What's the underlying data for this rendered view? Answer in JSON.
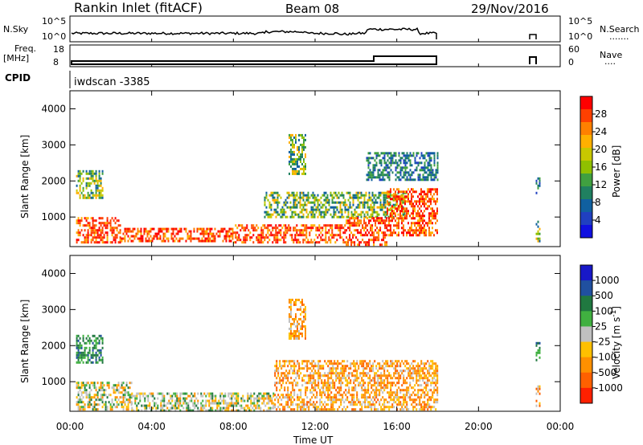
{
  "header": {
    "title": "Rankin Inlet (fitACF)",
    "beam": "Beam 08",
    "date": "29/Nov/2016"
  },
  "noise_panel": {
    "left_label": "N.Sky",
    "right_label": "N.Search",
    "right_dots": ".......",
    "y_tick_top": "10^5",
    "y_tick_bottom": "10^0"
  },
  "freq_panel": {
    "label_line1": "Freq.",
    "label_line2": "[MHz]",
    "left_ticks": [
      "18",
      "8"
    ],
    "right_label": "Nave",
    "right_dots": "....",
    "right_ticks": [
      "60",
      "0"
    ]
  },
  "cpid": {
    "label": "CPID",
    "value": "iwdscan -3385"
  },
  "axes": {
    "ylabel": "Slant Range [km]",
    "yticks": [
      "1000",
      "2000",
      "3000",
      "4000"
    ],
    "xticks": [
      "00:00",
      "04:00",
      "08:00",
      "12:00",
      "16:00",
      "20:00",
      "00:00"
    ],
    "xlabel": "Time UT"
  },
  "power_colorbar": {
    "label": "Power [dB]",
    "ticks": [
      "28",
      "24",
      "20",
      "16",
      "12",
      "8",
      "4"
    ],
    "colors": [
      "#ff0000",
      "#ff4000",
      "#ff8000",
      "#ffb000",
      "#c8c800",
      "#90c000",
      "#40a040",
      "#208060",
      "#1060a0",
      "#2040c0",
      "#1010e0"
    ]
  },
  "velocity_colorbar": {
    "label": "Velocity [m s",
    "label_sup": "-1",
    "label_end": "]",
    "ticks": [
      "1000",
      "500",
      "100",
      "25",
      "-25",
      "-100",
      "-500",
      "-1000"
    ],
    "colors": [
      "#1818c8",
      "#2050a0",
      "#207840",
      "#40b040",
      "#c0c0c0",
      "#ffc000",
      "#ff9000",
      "#ff6000",
      "#ff2000"
    ]
  },
  "chart_data": [
    {
      "type": "heatmap",
      "title": "Power",
      "x_range_hours": [
        0,
        24
      ],
      "y_range_km": [
        180,
        4500
      ],
      "regions": [
        {
          "t0": 0.3,
          "t1": 1.6,
          "r0": 1500,
          "r1": 2300,
          "level": "mid"
        },
        {
          "t0": 0.3,
          "t1": 2.5,
          "r0": 300,
          "r1": 1000,
          "level": "high"
        },
        {
          "t0": 2.5,
          "t1": 8.0,
          "r0": 300,
          "r1": 700,
          "level": "high"
        },
        {
          "t0": 8.0,
          "t1": 13.5,
          "r0": 300,
          "r1": 800,
          "level": "high"
        },
        {
          "t0": 9.5,
          "t1": 16.5,
          "r0": 1000,
          "r1": 1700,
          "level": "mid"
        },
        {
          "t0": 10.7,
          "t1": 11.5,
          "r0": 2200,
          "r1": 3300,
          "level": "mid"
        },
        {
          "t0": 13.5,
          "t1": 15.5,
          "r0": 200,
          "r1": 1000,
          "level": "high"
        },
        {
          "t0": 15.5,
          "t1": 18.0,
          "r0": 500,
          "r1": 1800,
          "level": "high"
        },
        {
          "t0": 14.5,
          "t1": 18.0,
          "r0": 2000,
          "r1": 2800,
          "level": "low"
        },
        {
          "t0": 22.8,
          "t1": 23.0,
          "r0": 1600,
          "r1": 2100,
          "level": "low"
        },
        {
          "t0": 22.8,
          "t1": 23.0,
          "r0": 300,
          "r1": 900,
          "level": "mid"
        }
      ]
    },
    {
      "type": "heatmap",
      "title": "Velocity",
      "x_range_hours": [
        0,
        24
      ],
      "y_range_km": [
        180,
        4500
      ],
      "regions": [
        {
          "t0": 0.3,
          "t1": 1.6,
          "r0": 1500,
          "r1": 2300,
          "level": "pos"
        },
        {
          "t0": 0.3,
          "t1": 3.0,
          "r0": 200,
          "r1": 1000,
          "level": "mixed"
        },
        {
          "t0": 3.0,
          "t1": 10.0,
          "r0": 200,
          "r1": 700,
          "level": "mixed"
        },
        {
          "t0": 10.0,
          "t1": 18.0,
          "r0": 200,
          "r1": 1600,
          "level": "neg"
        },
        {
          "t0": 10.7,
          "t1": 11.5,
          "r0": 2200,
          "r1": 3300,
          "level": "neg"
        },
        {
          "t0": 22.8,
          "t1": 23.0,
          "r0": 1600,
          "r1": 2100,
          "level": "pos"
        },
        {
          "t0": 22.8,
          "t1": 23.0,
          "r0": 300,
          "r1": 900,
          "level": "neg"
        }
      ]
    }
  ]
}
